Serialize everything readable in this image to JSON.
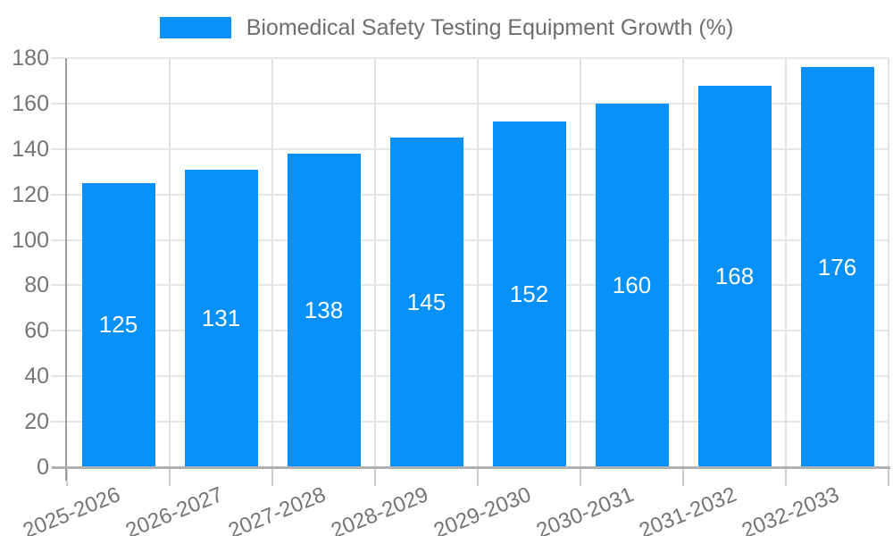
{
  "legend": {
    "label": "Biomedical Safety Testing Equipment Growth (%)"
  },
  "chart_data": {
    "type": "bar",
    "title": "Biomedical Safety Testing Equipment Growth (%)",
    "categories": [
      "2025-2026",
      "2026-2027",
      "2027-2028",
      "2028-2029",
      "2029-2030",
      "2030-2031",
      "2031-2032",
      "2032-2033"
    ],
    "values": [
      125,
      131,
      138,
      145,
      152,
      160,
      168,
      176
    ],
    "xlabel": "",
    "ylabel": "",
    "ylim": [
      0,
      180
    ],
    "ytick_step": 20,
    "yticks": [
      0,
      20,
      40,
      60,
      80,
      100,
      120,
      140,
      160,
      180
    ],
    "grid": true,
    "legend_position": "top-center",
    "x_label_rotation_deg": -22,
    "value_labels": "inside-center"
  },
  "colors": {
    "bar": "#0590fa",
    "value_label": "#ffffff",
    "h_gridline": "#e6e6e6",
    "v_gridline": "#e2e2e2",
    "y_axis_line": "#9e9e9e",
    "x_axis_line": "#b1b1b1",
    "y_tick": "#e3e3e3",
    "x_tick": "#cdcdcd",
    "axis_text": "#757575",
    "legend_text": "#6e6e6e",
    "background": "#ffffff"
  }
}
